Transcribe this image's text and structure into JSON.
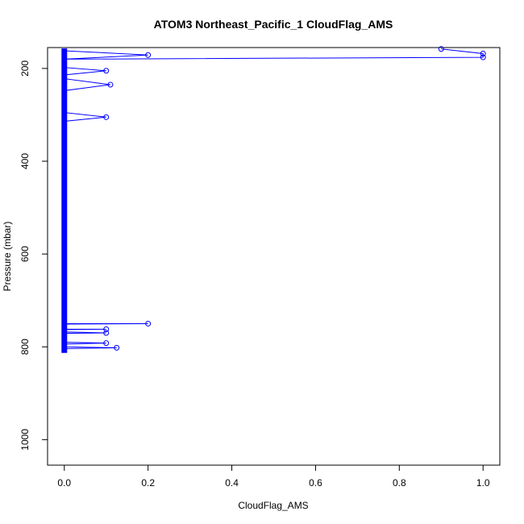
{
  "chart_data": {
    "type": "line",
    "title": "ATOM3 Northeast_Pacific_1 CloudFlag_AMS",
    "xlabel": "CloudFlag_AMS",
    "ylabel": "Pressure (mbar)",
    "xlim": [
      -0.04,
      1.04
    ],
    "ylim": [
      1055,
      155
    ],
    "y_reversed": true,
    "x_ticks": [
      "0.0",
      "0.2",
      "0.4",
      "0.6",
      "0.8",
      "1.0"
    ],
    "y_ticks": [
      "200",
      "400",
      "600",
      "800",
      "1000"
    ],
    "series_color": "#0000ff",
    "dense_zero_range": [
      157,
      813
    ],
    "points": [
      {
        "x": 0.9,
        "y": 158
      },
      {
        "x": 1.0,
        "y": 168
      },
      {
        "x": 1.0,
        "y": 176
      },
      {
        "x": 0.0,
        "y": 180
      },
      {
        "x": 0.2,
        "y": 171
      },
      {
        "x": 0.0,
        "y": 162
      },
      {
        "x": 0.0,
        "y": 198
      },
      {
        "x": 0.1,
        "y": 205
      },
      {
        "x": 0.0,
        "y": 214
      },
      {
        "x": 0.0,
        "y": 222
      },
      {
        "x": 0.11,
        "y": 235
      },
      {
        "x": 0.0,
        "y": 248
      },
      {
        "x": 0.0,
        "y": 295
      },
      {
        "x": 0.1,
        "y": 305
      },
      {
        "x": 0.0,
        "y": 314
      },
      {
        "x": 0.0,
        "y": 750
      },
      {
        "x": 0.2,
        "y": 750
      },
      {
        "x": 0.0,
        "y": 751
      },
      {
        "x": 0.0,
        "y": 762
      },
      {
        "x": 0.1,
        "y": 762
      },
      {
        "x": 0.0,
        "y": 763
      },
      {
        "x": 0.0,
        "y": 768
      },
      {
        "x": 0.1,
        "y": 770
      },
      {
        "x": 0.0,
        "y": 771
      },
      {
        "x": 0.0,
        "y": 790
      },
      {
        "x": 0.1,
        "y": 792
      },
      {
        "x": 0.0,
        "y": 794
      },
      {
        "x": 0.0,
        "y": 800
      },
      {
        "x": 0.125,
        "y": 802
      },
      {
        "x": 0.0,
        "y": 804
      }
    ]
  }
}
